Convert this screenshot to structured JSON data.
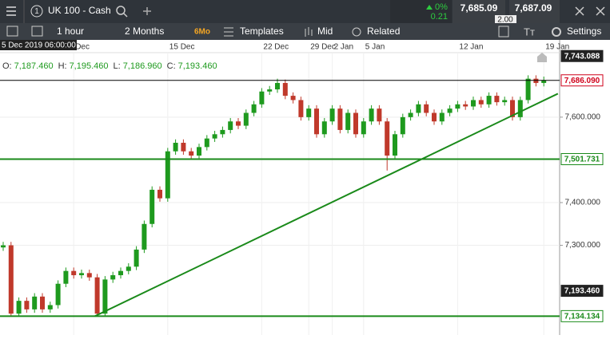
{
  "header": {
    "instrument_number": "1",
    "instrument": "UK 100 - Cash",
    "change_pct": "0%",
    "change": "0.21",
    "sell": "7,685.09",
    "spread": "2.00",
    "buy": "7,687.09"
  },
  "toolbar": {
    "interval": "1 hour",
    "range": "2 Months",
    "range_badge": "6Mo",
    "templates": "Templates",
    "price_type": "Mid",
    "related": "Related",
    "settings": "Settings"
  },
  "cursor_time": "5 Dec 2019 06:00:00",
  "ohlc_readout": {
    "o_label": "O:",
    "o": "7,187.460",
    "h_label": "H:",
    "h": "7,195.460",
    "l_label": "L:",
    "l": "7,186.960",
    "c_label": "C:",
    "c": "7,193.460"
  },
  "chart_data": {
    "type": "candlestick",
    "categories": [
      null,
      null,
      null,
      null,
      null,
      null,
      null,
      null,
      null,
      "Dec",
      null,
      null,
      null,
      null,
      null,
      null,
      null,
      null,
      null,
      null,
      null,
      "15 Dec",
      null,
      null,
      null,
      null,
      null,
      null,
      null,
      null,
      null,
      null,
      null,
      "22 Dec",
      null,
      null,
      null,
      null,
      null,
      "29 Dec",
      null,
      null,
      "2 Jan",
      null,
      null,
      null,
      "5 Jan",
      null,
      null,
      null,
      null,
      null,
      null,
      null,
      null,
      null,
      null,
      null,
      "12 Jan",
      null,
      null,
      null,
      null,
      null,
      null,
      null,
      null,
      null,
      null,
      "19 Jan"
    ],
    "open": [
      7295,
      7300,
      7140,
      7170,
      7150,
      7180,
      7150,
      7160,
      7210,
      7240,
      7230,
      7235,
      7225,
      7140,
      7220,
      7230,
      7240,
      7250,
      7290,
      7350,
      7430,
      7410,
      7520,
      7540,
      7520,
      7510,
      7530,
      7550,
      7560,
      7570,
      7590,
      7580,
      7610,
      7630,
      7660,
      7665,
      7680,
      7650,
      7640,
      7600,
      7620,
      7560,
      7590,
      7620,
      7570,
      7610,
      7560,
      7590,
      7620,
      7590,
      7510,
      7560,
      7600,
      7610,
      7630,
      7610,
      7590,
      7610,
      7620,
      7630,
      7625,
      7640,
      7630,
      7650,
      7635,
      7640,
      7600,
      7640,
      7690,
      7680
    ],
    "high": [
      7308,
      7308,
      7178,
      7178,
      7188,
      7188,
      7168,
      7218,
      7248,
      7248,
      7243,
      7243,
      7233,
      7228,
      7238,
      7248,
      7258,
      7298,
      7358,
      7438,
      7438,
      7528,
      7548,
      7548,
      7528,
      7538,
      7558,
      7568,
      7578,
      7598,
      7598,
      7618,
      7638,
      7668,
      7673,
      7690,
      7688,
      7658,
      7648,
      7628,
      7628,
      7598,
      7628,
      7628,
      7618,
      7618,
      7598,
      7628,
      7628,
      7598,
      7568,
      7608,
      7618,
      7638,
      7638,
      7618,
      7618,
      7628,
      7638,
      7638,
      7648,
      7648,
      7658,
      7658,
      7648,
      7648,
      7648,
      7698,
      7698,
      7695
    ],
    "low": [
      7287,
      7135,
      7135,
      7142,
      7142,
      7142,
      7142,
      7152,
      7202,
      7222,
      7222,
      7217,
      7134,
      7134,
      7212,
      7222,
      7232,
      7242,
      7282,
      7342,
      7402,
      7402,
      7512,
      7512,
      7502,
      7502,
      7522,
      7542,
      7552,
      7562,
      7572,
      7572,
      7602,
      7622,
      7652,
      7657,
      7642,
      7632,
      7592,
      7592,
      7552,
      7552,
      7582,
      7562,
      7562,
      7552,
      7552,
      7582,
      7582,
      7475,
      7502,
      7552,
      7592,
      7602,
      7602,
      7582,
      7582,
      7602,
      7612,
      7617,
      7617,
      7622,
      7622,
      7627,
      7627,
      7592,
      7592,
      7632,
      7672,
      7672
    ],
    "close": [
      7300,
      7140,
      7170,
      7150,
      7180,
      7150,
      7160,
      7210,
      7240,
      7230,
      7235,
      7225,
      7140,
      7220,
      7230,
      7240,
      7250,
      7290,
      7350,
      7430,
      7410,
      7520,
      7540,
      7520,
      7510,
      7530,
      7550,
      7560,
      7570,
      7590,
      7580,
      7610,
      7630,
      7660,
      7665,
      7680,
      7650,
      7640,
      7600,
      7620,
      7560,
      7590,
      7620,
      7570,
      7610,
      7560,
      7590,
      7620,
      7590,
      7510,
      7560,
      7600,
      7610,
      7630,
      7610,
      7590,
      7610,
      7620,
      7630,
      7625,
      7640,
      7630,
      7650,
      7635,
      7640,
      7600,
      7640,
      7690,
      7680,
      7686.09
    ],
    "up_color": "#1e9a1e",
    "down_color": "#c0392b",
    "ylim": [
      7090,
      7751
    ],
    "yticks": [
      {
        "value": 7600,
        "label": "7,600.000"
      },
      {
        "value": 7400,
        "label": "7,400.000"
      },
      {
        "value": 7300,
        "label": "7,300.000"
      }
    ],
    "grid": true,
    "levels": [
      {
        "value": 7743.088,
        "label": "7,743.088",
        "style": "dark"
      },
      {
        "value": 7686.09,
        "label": "7,686.090",
        "style": "current"
      },
      {
        "value": 7501.731,
        "label": "7,501.731",
        "style": "drawn"
      },
      {
        "value": 7193.46,
        "label": "7,193.460",
        "style": "dark"
      },
      {
        "value": 7134.134,
        "label": "7,134.134",
        "style": "drawn"
      }
    ],
    "trendlines": [
      {
        "color": "#1a8a1a",
        "x": [
          11.7,
          70.8
        ],
        "y": [
          7134.134,
          7655
        ]
      }
    ]
  }
}
